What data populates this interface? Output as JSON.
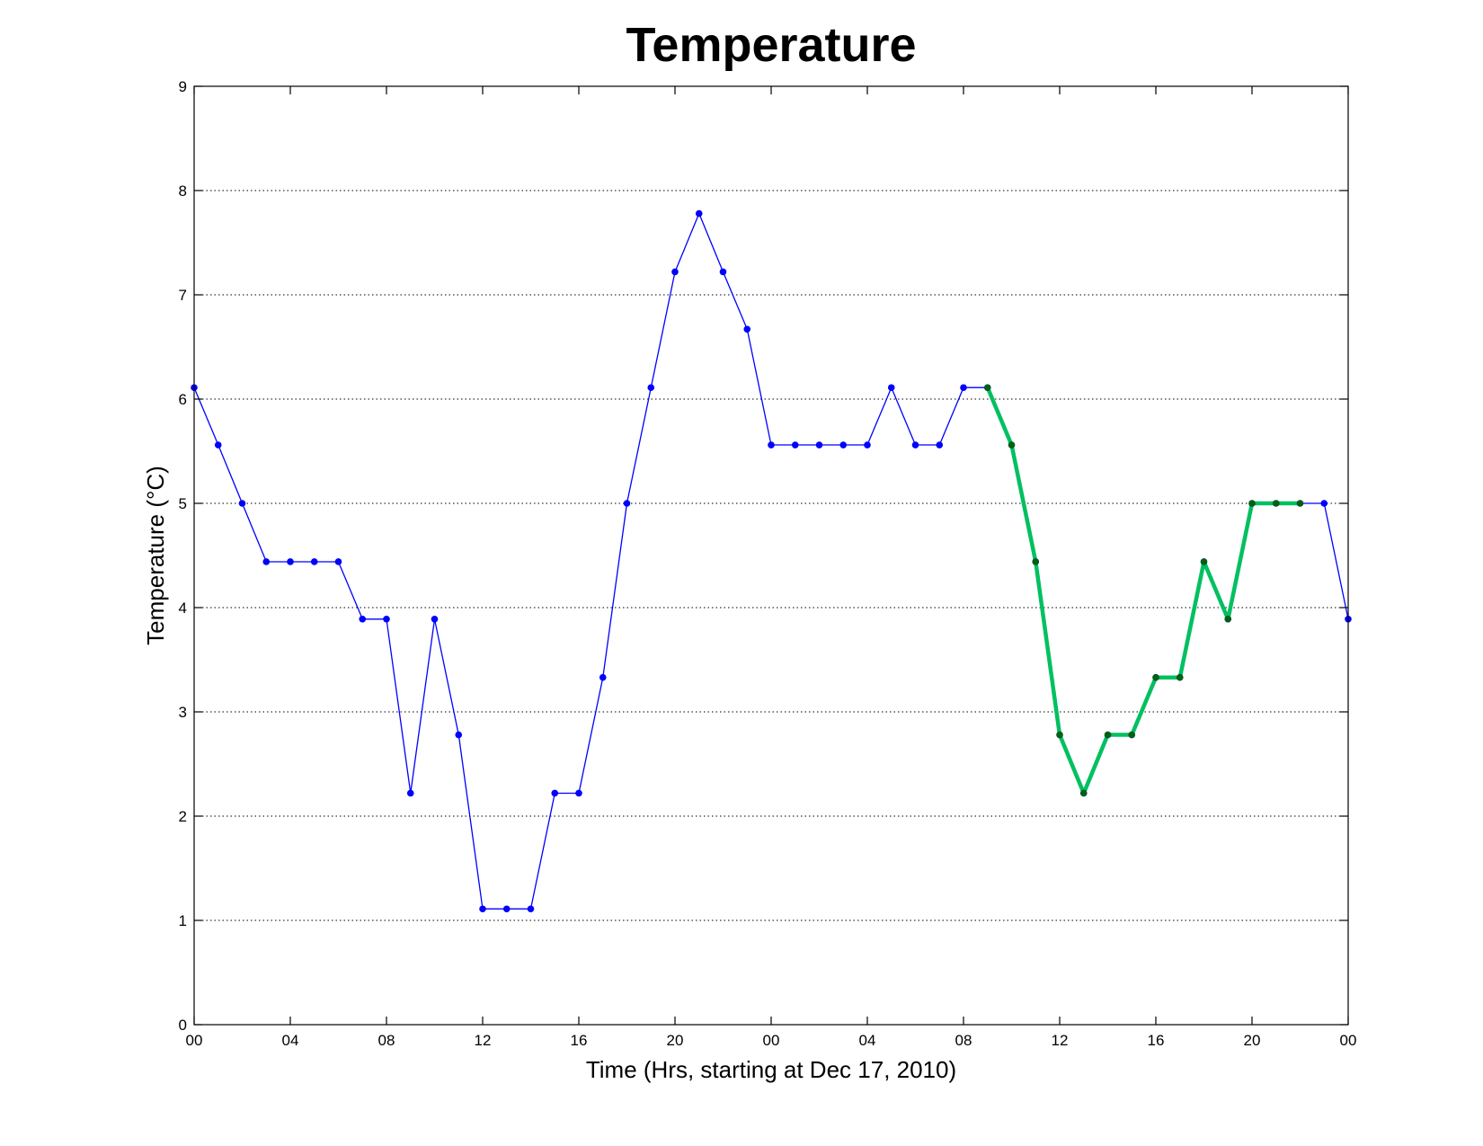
{
  "chart_data": {
    "type": "line",
    "title": "Temperature",
    "xlabel": "Time (Hrs, starting at Dec 17, 2010)",
    "ylabel": "Temperature (°C)",
    "ylim": [
      0,
      9
    ],
    "xlim": [
      0,
      48
    ],
    "grid": "horizontal dotted",
    "yticks": [
      "0",
      "1",
      "2",
      "3",
      "4",
      "5",
      "6",
      "7",
      "8",
      "9"
    ],
    "xtick_labels": [
      "00",
      "04",
      "08",
      "12",
      "16",
      "20",
      "00",
      "04",
      "08",
      "12",
      "16",
      "20",
      "00"
    ],
    "series": [
      {
        "color": "#0000ff",
        "x": [
          0,
          1,
          2,
          3,
          4,
          5,
          6,
          7,
          8,
          9,
          10,
          11,
          12,
          13,
          14,
          15,
          16,
          17,
          18,
          19,
          20,
          21,
          22,
          23,
          24,
          25,
          26,
          27,
          28,
          29,
          30,
          31,
          32,
          33,
          34,
          35,
          36,
          37,
          38,
          39,
          40,
          41,
          42,
          43,
          44,
          45,
          46,
          47,
          48
        ],
        "values": [
          6.11,
          5.56,
          5.0,
          4.44,
          4.44,
          4.44,
          4.44,
          3.89,
          3.89,
          2.22,
          3.89,
          2.78,
          1.11,
          1.11,
          1.11,
          2.22,
          2.22,
          3.33,
          5.0,
          6.11,
          7.22,
          7.78,
          7.22,
          6.67,
          5.56,
          5.56,
          5.56,
          5.56,
          5.56,
          6.11,
          5.56,
          5.56,
          6.11,
          6.11,
          5.56,
          4.44,
          2.78,
          2.22,
          2.78,
          2.78,
          3.33,
          3.33,
          4.44,
          3.89,
          5.0,
          5.0,
          5.0,
          5.0,
          3.89
        ]
      },
      {
        "color": "#00c060",
        "marker_color": "#006400",
        "x": [
          33,
          34,
          35,
          36,
          37,
          38,
          39,
          40,
          41,
          42,
          43,
          44,
          45,
          46
        ],
        "values": [
          6.11,
          5.56,
          4.44,
          2.78,
          2.22,
          2.78,
          2.78,
          3.33,
          3.33,
          4.44,
          3.89,
          5.0,
          5.0,
          5.0
        ]
      }
    ]
  }
}
